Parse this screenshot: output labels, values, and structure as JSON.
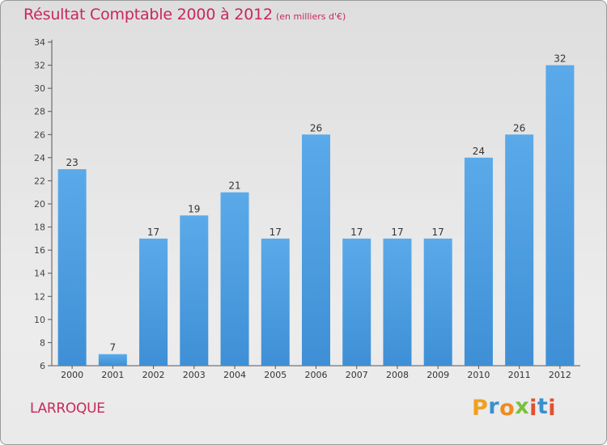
{
  "chart_data": {
    "type": "bar",
    "title": "Résultat Comptable 2000 à 2012",
    "subtitle": "(en milliers d'€)",
    "categories": [
      "2000",
      "2001",
      "2002",
      "2003",
      "2004",
      "2005",
      "2006",
      "2007",
      "2008",
      "2009",
      "2010",
      "2011",
      "2012"
    ],
    "values": [
      23,
      7,
      17,
      19,
      21,
      17,
      26,
      17,
      17,
      17,
      24,
      26,
      32
    ],
    "ylim": [
      6,
      34
    ],
    "yticks": [
      6,
      8,
      10,
      12,
      14,
      16,
      18,
      20,
      22,
      24,
      26,
      28,
      30,
      32,
      34
    ],
    "xlabel": "",
    "ylabel": "",
    "grid": false,
    "bar_color": "#3f8fd6",
    "bar_color_light": "#5aaaea"
  },
  "commune": "LARROQUE",
  "logo": {
    "letters": [
      "P",
      "r",
      "o",
      "x",
      "i",
      "t",
      "i"
    ],
    "colors": [
      "#f0a020",
      "#3a8fd0",
      "#f08a20",
      "#7ac040",
      "#e05030",
      "#3a8fd0",
      "#e05030"
    ]
  },
  "colors": {
    "accent": "#c8285a",
    "axis": "#555555"
  }
}
